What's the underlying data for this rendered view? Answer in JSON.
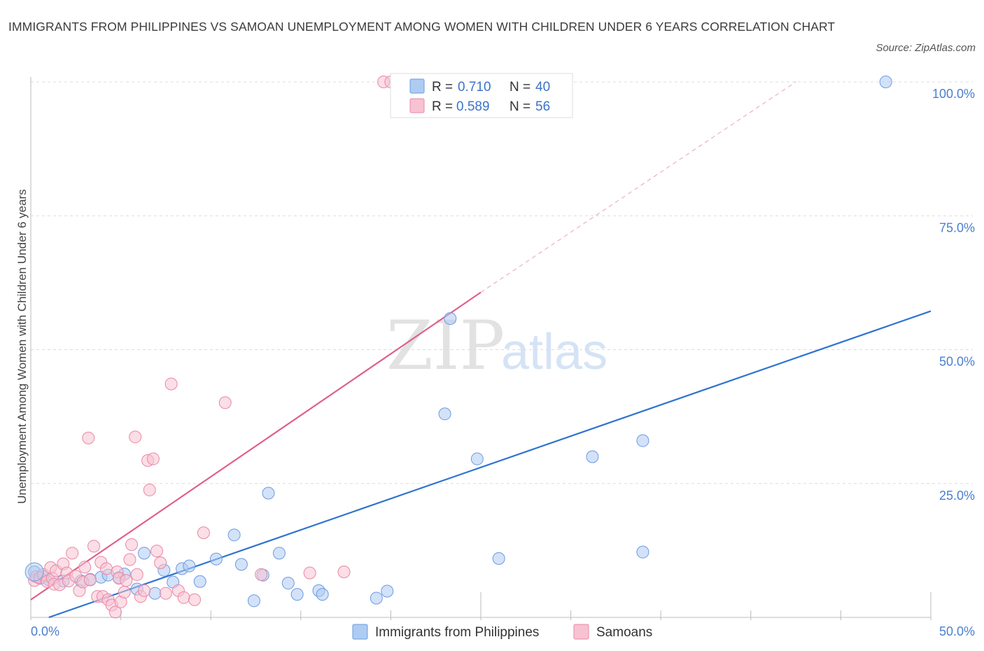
{
  "title": "IMMIGRANTS FROM PHILIPPINES VS SAMOAN UNEMPLOYMENT AMONG WOMEN WITH CHILDREN UNDER 6 YEARS CORRELATION CHART",
  "source": "Source: ZipAtlas.com",
  "watermark": {
    "zip": "ZIP",
    "atlas": "atlas"
  },
  "legend": {
    "r_label": "R =",
    "n_label": "N =",
    "rows": [
      {
        "name": "Immigrants from Philippines",
        "r": "0.710",
        "n": "40",
        "color": "#aecbf2",
        "stroke": "#6b9be0"
      },
      {
        "name": "Samoans",
        "r": "0.589",
        "n": "56",
        "color": "#f7c2d2",
        "stroke": "#e888a6"
      }
    ]
  },
  "chart_data": {
    "type": "scatter",
    "title": "IMMIGRANTS FROM PHILIPPINES VS SAMOAN UNEMPLOYMENT AMONG WOMEN WITH CHILDREN UNDER 6 YEARS CORRELATION CHART",
    "xlabel": "",
    "ylabel": "Unemployment Among Women with Children Under 6 years",
    "xlim": [
      0,
      50
    ],
    "ylim": [
      0,
      100
    ],
    "x_tick_labels": [
      "0.0%",
      "50.0%"
    ],
    "y_ticks": [
      25,
      50,
      75,
      100
    ],
    "y_tick_labels": [
      "25.0%",
      "50.0%",
      "75.0%",
      "100.0%"
    ],
    "grid": true,
    "legend_position": "top-center",
    "series": [
      {
        "name": "Immigrants from Philippines",
        "color": "#6b9be0",
        "fill": "#aecbf2",
        "trend_color": "#2f73d0",
        "trend": {
          "x0": 1.0,
          "y0": 0.0,
          "x1": 50.0,
          "y1": 57.2
        },
        "points": [
          [
            0.2,
            8.5
          ],
          [
            0.5,
            7.3
          ],
          [
            0.7,
            7.6
          ],
          [
            1.0,
            7.0
          ],
          [
            1.8,
            6.8
          ],
          [
            2.8,
            6.8
          ],
          [
            3.3,
            7.1
          ],
          [
            3.9,
            7.5
          ],
          [
            4.3,
            7.9
          ],
          [
            4.9,
            7.4
          ],
          [
            5.2,
            8.1
          ],
          [
            5.9,
            5.3
          ],
          [
            6.3,
            12.0
          ],
          [
            6.9,
            4.5
          ],
          [
            7.4,
            8.8
          ],
          [
            7.9,
            6.6
          ],
          [
            8.4,
            9.1
          ],
          [
            8.8,
            9.6
          ],
          [
            9.4,
            6.7
          ],
          [
            10.3,
            10.9
          ],
          [
            11.3,
            15.4
          ],
          [
            11.7,
            9.9
          ],
          [
            12.4,
            3.1
          ],
          [
            12.9,
            7.9
          ],
          [
            13.2,
            23.2
          ],
          [
            13.8,
            12.0
          ],
          [
            14.3,
            6.4
          ],
          [
            14.8,
            4.3
          ],
          [
            16.0,
            5.0
          ],
          [
            16.2,
            4.3
          ],
          [
            19.2,
            3.6
          ],
          [
            19.8,
            4.9
          ],
          [
            23.0,
            38.0
          ],
          [
            23.3,
            55.8
          ],
          [
            24.8,
            29.6
          ],
          [
            26.0,
            11.0
          ],
          [
            31.2,
            30.0
          ],
          [
            34.0,
            33.0
          ],
          [
            34.0,
            12.2
          ],
          [
            47.5,
            100.0
          ]
        ]
      },
      {
        "name": "Samoans",
        "color": "#e888a6",
        "fill": "#f7c2d2",
        "trend_color": "#e0608a",
        "trend": {
          "x0": 0.0,
          "y0": 3.3,
          "x1": 25.0,
          "y1": 60.7
        },
        "trend_extension": {
          "x0": 25.0,
          "y0": 60.7,
          "x1": 42.5,
          "y1": 100.0
        },
        "points": [
          [
            0.2,
            6.9
          ],
          [
            0.3,
            7.6
          ],
          [
            0.5,
            7.4
          ],
          [
            0.7,
            8.0
          ],
          [
            0.9,
            6.7
          ],
          [
            1.1,
            9.3
          ],
          [
            1.2,
            7.3
          ],
          [
            1.3,
            6.2
          ],
          [
            1.4,
            8.7
          ],
          [
            1.6,
            6.1
          ],
          [
            1.8,
            10.0
          ],
          [
            2.0,
            8.3
          ],
          [
            2.1,
            6.8
          ],
          [
            2.3,
            12.0
          ],
          [
            2.5,
            7.7
          ],
          [
            2.7,
            5.0
          ],
          [
            2.9,
            6.6
          ],
          [
            3.0,
            9.4
          ],
          [
            3.2,
            33.5
          ],
          [
            3.3,
            7.0
          ],
          [
            3.5,
            13.3
          ],
          [
            3.7,
            3.9
          ],
          [
            3.9,
            10.3
          ],
          [
            4.0,
            3.9
          ],
          [
            4.2,
            9.1
          ],
          [
            4.3,
            3.3
          ],
          [
            4.5,
            2.3
          ],
          [
            4.7,
            1.0
          ],
          [
            4.8,
            8.5
          ],
          [
            4.9,
            7.3
          ],
          [
            5.0,
            2.9
          ],
          [
            5.2,
            4.7
          ],
          [
            5.3,
            6.9
          ],
          [
            5.5,
            10.8
          ],
          [
            5.6,
            13.6
          ],
          [
            5.8,
            33.7
          ],
          [
            5.9,
            8.0
          ],
          [
            6.1,
            3.9
          ],
          [
            6.3,
            5.0
          ],
          [
            6.5,
            29.3
          ],
          [
            6.6,
            23.8
          ],
          [
            6.8,
            29.6
          ],
          [
            7.0,
            12.4
          ],
          [
            7.2,
            10.2
          ],
          [
            7.5,
            4.5
          ],
          [
            7.8,
            43.6
          ],
          [
            8.2,
            5.0
          ],
          [
            8.5,
            3.7
          ],
          [
            9.1,
            3.3
          ],
          [
            9.6,
            15.8
          ],
          [
            10.8,
            40.1
          ],
          [
            12.8,
            8.0
          ],
          [
            15.5,
            8.3
          ],
          [
            17.4,
            8.5
          ],
          [
            19.6,
            100.0
          ],
          [
            20.0,
            100.0
          ]
        ]
      }
    ]
  }
}
